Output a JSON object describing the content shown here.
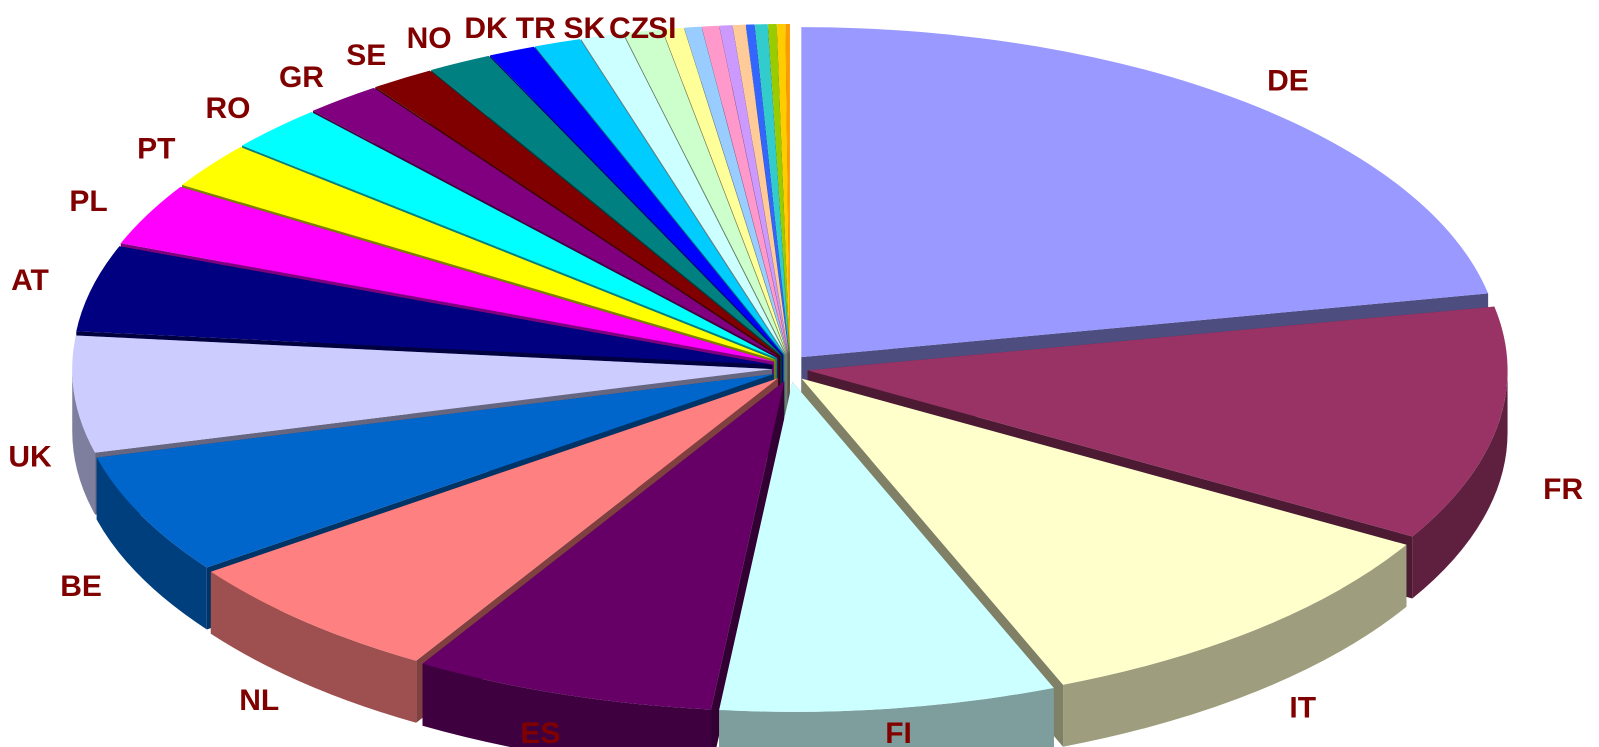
{
  "chart_data": {
    "type": "pie",
    "style": "3d-exploded",
    "title": "",
    "categories": [
      "DE",
      "FR",
      "IT",
      "FI",
      "ES",
      "NL",
      "BE",
      "UK",
      "AT",
      "PL",
      "PT",
      "RO",
      "GR",
      "SE",
      "NO",
      "DK",
      "TR",
      "SK",
      "CZ",
      "SI",
      "",
      "",
      "",
      "",
      "",
      "",
      "",
      "",
      ""
    ],
    "values": [
      22.3,
      11.7,
      10.7,
      7.9,
      7.1,
      6.5,
      6.0,
      5.8,
      4.3,
      3.1,
      2.3,
      2.3,
      1.8,
      1.5,
      1.5,
      1.1,
      1.1,
      1.0,
      0.9,
      0.5,
      0.4,
      0.4,
      0.3,
      0.3,
      0.2,
      0.3,
      0.2,
      0.2,
      0.1
    ],
    "colors": [
      "#9999ff",
      "#993366",
      "#ffffcc",
      "#ccffff",
      "#660066",
      "#ff8080",
      "#0066cc",
      "#ccccff",
      "#000080",
      "#ff00ff",
      "#ffff00",
      "#00ffff",
      "#800080",
      "#800000",
      "#008080",
      "#0000ff",
      "#00ccff",
      "#ccffff",
      "#ccffcc",
      "#ffff99",
      "#99ccff",
      "#ff99cc",
      "#cc99ff",
      "#ffcc99",
      "#3366ff",
      "#33cccc",
      "#99cc00",
      "#ffcc00",
      "#ff9900"
    ],
    "legend": "none",
    "grid": false
  }
}
